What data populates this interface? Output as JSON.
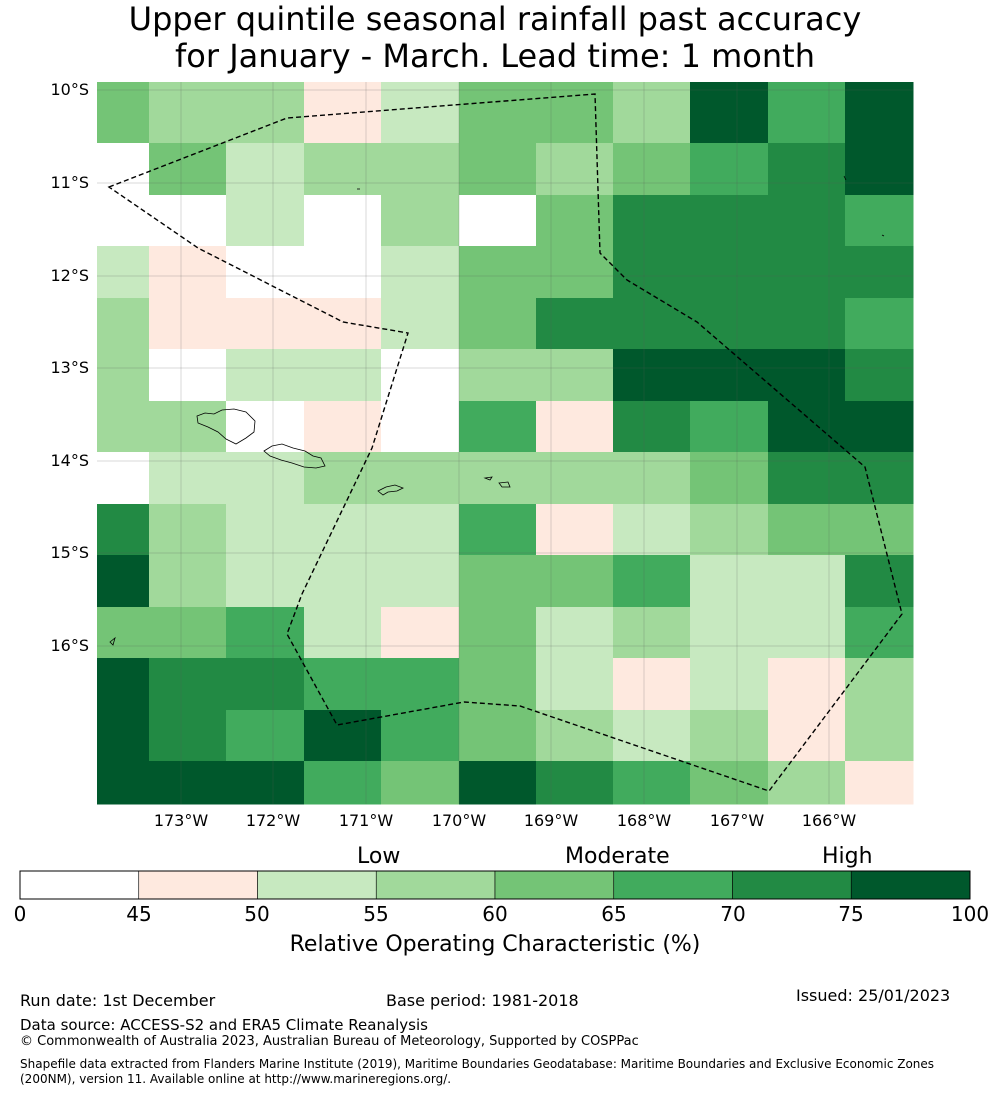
{
  "title": {
    "line1": "Upper quintile seasonal rainfall past accuracy",
    "line2": "for January - March. Lead time: 1 month"
  },
  "map": {
    "lat_labels": [
      "10°S",
      "11°S",
      "12°S",
      "13°S",
      "14°S",
      "15°S",
      "16°S"
    ],
    "lon_labels": [
      "173°W",
      "172°W",
      "171°W",
      "170°W",
      "169°W",
      "168°W",
      "167°W",
      "166°W"
    ],
    "grid_colors": [
      [
        "#74c476",
        "#a1d99b",
        "#a1d99b",
        "#fee9df",
        "#c7e9c0",
        "#74c476",
        "#74c476",
        "#a1d99b",
        "#00582c",
        "#41ab5d",
        "#00582c"
      ],
      [
        "#ffffff",
        "#74c476",
        "#c7e9c0",
        "#a1d99b",
        "#a1d99b",
        "#74c476",
        "#a1d99b",
        "#74c476",
        "#41ab5d",
        "#228a44",
        "#00582c"
      ],
      [
        "#ffffff",
        "#ffffff",
        "#c7e9c0",
        "#ffffff",
        "#a1d99b",
        "#ffffff",
        "#74c476",
        "#228a44",
        "#228a44",
        "#228a44",
        "#41ab5d"
      ],
      [
        "#c7e9c0",
        "#fee9df",
        "#ffffff",
        "#ffffff",
        "#c7e9c0",
        "#74c476",
        "#74c476",
        "#228a44",
        "#228a44",
        "#228a44",
        "#228a44"
      ],
      [
        "#a1d99b",
        "#fee9df",
        "#fee9df",
        "#fee9df",
        "#c7e9c0",
        "#74c476",
        "#228a44",
        "#228a44",
        "#228a44",
        "#228a44",
        "#41ab5d"
      ],
      [
        "#a1d99b",
        "#ffffff",
        "#c7e9c0",
        "#c7e9c0",
        "#ffffff",
        "#a1d99b",
        "#a1d99b",
        "#00582c",
        "#00582c",
        "#00582c",
        "#228a44"
      ],
      [
        "#a1d99b",
        "#a1d99b",
        "#ffffff",
        "#fee9df",
        "#ffffff",
        "#41ab5d",
        "#fee9df",
        "#228a44",
        "#41ab5d",
        "#00582c",
        "#00582c"
      ],
      [
        "#ffffff",
        "#c7e9c0",
        "#c7e9c0",
        "#a1d99b",
        "#a1d99b",
        "#a1d99b",
        "#a1d99b",
        "#a1d99b",
        "#74c476",
        "#228a44",
        "#228a44"
      ],
      [
        "#228a44",
        "#a1d99b",
        "#c7e9c0",
        "#c7e9c0",
        "#c7e9c0",
        "#41ab5d",
        "#fee9df",
        "#c7e9c0",
        "#a1d99b",
        "#74c476",
        "#74c476"
      ],
      [
        "#00582c",
        "#a1d99b",
        "#c7e9c0",
        "#c7e9c0",
        "#c7e9c0",
        "#74c476",
        "#74c476",
        "#41ab5d",
        "#c7e9c0",
        "#c7e9c0",
        "#228a44"
      ],
      [
        "#74c476",
        "#74c476",
        "#41ab5d",
        "#c7e9c0",
        "#fee9df",
        "#74c476",
        "#c7e9c0",
        "#a1d99b",
        "#c7e9c0",
        "#c7e9c0",
        "#41ab5d"
      ],
      [
        "#00582c",
        "#228a44",
        "#228a44",
        "#41ab5d",
        "#41ab5d",
        "#74c476",
        "#c7e9c0",
        "#fee9df",
        "#c7e9c0",
        "#fee9df",
        "#a1d99b"
      ],
      [
        "#00582c",
        "#228a44",
        "#41ab5d",
        "#00582c",
        "#41ab5d",
        "#74c476",
        "#a1d99b",
        "#c7e9c0",
        "#a1d99b",
        "#fee9df",
        "#a1d99b"
      ],
      [
        "#00582c",
        "#00582c",
        "#00582c",
        "#41ab5d",
        "#74c476",
        "#00582c",
        "#228a44",
        "#41ab5d",
        "#74c476",
        "#a1d99b",
        "#fee9df"
      ]
    ]
  },
  "colorbar": {
    "category_labels": [
      "Low",
      "Moderate",
      "High"
    ],
    "ticks": [
      "0",
      "45",
      "50",
      "55",
      "60",
      "65",
      "70",
      "75",
      "100"
    ],
    "colors": [
      "#ffffff",
      "#fee9df",
      "#c7e9c0",
      "#a1d99b",
      "#74c476",
      "#41ab5d",
      "#228a44",
      "#00582c"
    ],
    "axis_label": "Relative Operating Characteristic (%)"
  },
  "footer": {
    "run_date": "Run date: 1st December",
    "base_period": "Base period: 1981-2018",
    "issued": "Issued: 25/01/2023",
    "data_source": "Data source: ACCESS-S2 and ERA5 Climate Reanalysis",
    "copyright": "© Commonwealth of Australia 2023, Australian Bureau of Meteorology, Supported by COSPPac",
    "shapefile": "Shapefile data extracted from Flanders Marine Institute (2019), Maritime Boundaries Geodatabase: Maritime Boundaries and Exclusive Economic Zones (200NM), version 11. Available online at http://www.marineregions.org/."
  }
}
